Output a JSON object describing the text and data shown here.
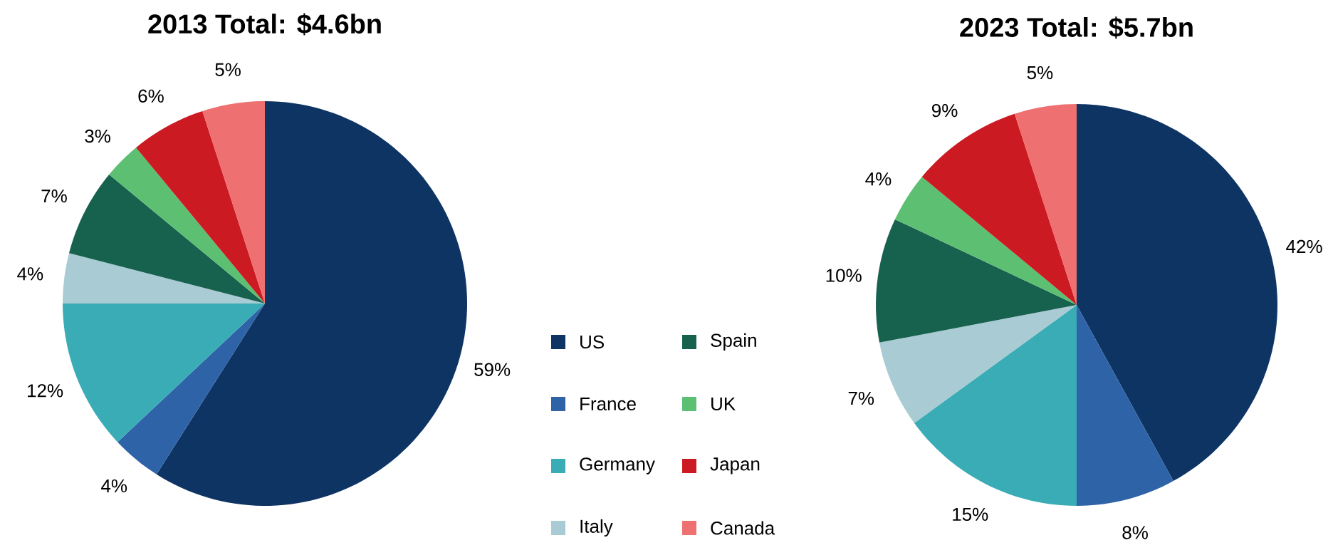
{
  "chart_data": [
    {
      "type": "pie",
      "title": "2013 Total: $4.6bn",
      "categories": [
        "US",
        "France",
        "Germany",
        "Italy",
        "Spain",
        "UK",
        "Japan",
        "Canada"
      ],
      "values": [
        59,
        4,
        12,
        4,
        7,
        3,
        6,
        5
      ],
      "value_labels": [
        "59%",
        "4%",
        "12%",
        "4%",
        "7%",
        "3%",
        "6%",
        "5%"
      ],
      "colors": [
        "#0e3464",
        "#2e63a8",
        "#3aacb5",
        "#a9cbd3",
        "#17614f",
        "#5cbf72",
        "#cc1a22",
        "#ef7070"
      ],
      "legend": "right"
    },
    {
      "type": "pie",
      "title": "2023 Total: $5.7bn",
      "categories": [
        null,
        null,
        null,
        null,
        null,
        null,
        null,
        null
      ],
      "values": [
        42,
        8,
        15,
        7,
        10,
        4,
        9,
        5
      ],
      "value_labels": [
        "42%",
        "8%",
        "15%",
        "7%",
        "10%",
        "4%",
        "9%",
        "5%"
      ],
      "colors": [
        "#0e3464",
        "#2e63a8",
        "#3aacb5",
        "#a9cbd3",
        "#17614f",
        "#5cbf72",
        "#cc1a22",
        "#ef7070"
      ],
      "legend": false
    }
  ]
}
